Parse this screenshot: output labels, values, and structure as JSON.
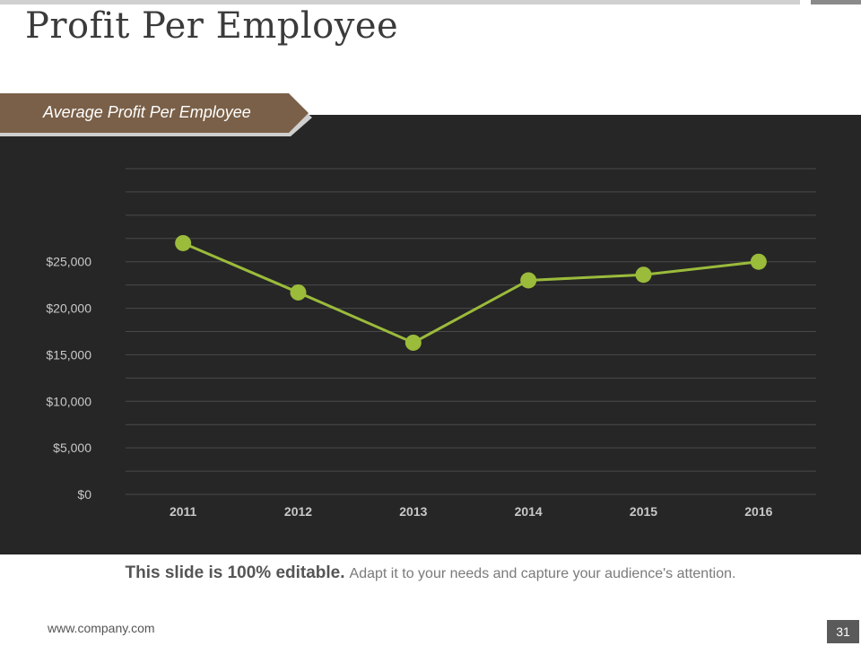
{
  "slide": {
    "title": "Profit Per Employee",
    "banner_label": "Average Profit Per Employee",
    "footer_bold": "This slide is 100% editable.",
    "footer_text": "Adapt it to your needs and capture your audience's attention.",
    "website": "www.company.com",
    "page_number": "31"
  },
  "colors": {
    "panel": "#262626",
    "line": "#9bbb3b",
    "grid": "#4a4a4a",
    "banner": "#7a6048"
  },
  "chart_data": {
    "type": "line",
    "title": "Average Profit Per Employee",
    "xlabel": "",
    "ylabel": "",
    "categories": [
      "2011",
      "2012",
      "2013",
      "2014",
      "2015",
      "2016"
    ],
    "series": [
      {
        "name": "Average Profit Per Employee",
        "values": [
          27000,
          21700,
          16300,
          23000,
          23600,
          25000
        ]
      }
    ],
    "ylim": [
      0,
      35000
    ],
    "y_ticks": [
      0,
      5000,
      10000,
      15000,
      20000,
      25000
    ],
    "y_tick_labels": [
      "$0",
      "$5,000",
      "$10,000",
      "$15,000",
      "$20,000",
      "$25,000"
    ],
    "grid": true,
    "legend": "none"
  }
}
